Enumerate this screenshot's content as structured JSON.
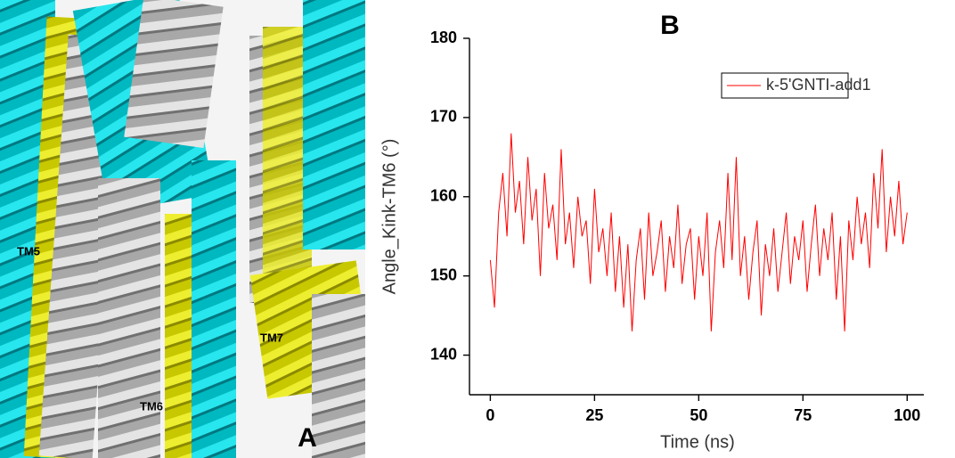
{
  "chart_data": {
    "type": "line",
    "title": "B",
    "x_label": "Time (ns)",
    "y_label": "Angle_Kink-TM6 (°)",
    "x": [
      0,
      1,
      2,
      3,
      4,
      5,
      6,
      7,
      8,
      9,
      10,
      11,
      12,
      13,
      14,
      15,
      16,
      17,
      18,
      19,
      20,
      21,
      22,
      23,
      24,
      25,
      26,
      27,
      28,
      29,
      30,
      31,
      32,
      33,
      34,
      35,
      36,
      37,
      38,
      39,
      40,
      41,
      42,
      43,
      44,
      45,
      46,
      47,
      48,
      49,
      50,
      51,
      52,
      53,
      54,
      55,
      56,
      57,
      58,
      59,
      60,
      61,
      62,
      63,
      64,
      65,
      66,
      67,
      68,
      69,
      70,
      71,
      72,
      73,
      74,
      75,
      76,
      77,
      78,
      79,
      80,
      81,
      82,
      83,
      84,
      85,
      86,
      87,
      88,
      89,
      90,
      91,
      92,
      93,
      94,
      95,
      96,
      97,
      98,
      99,
      100
    ],
    "series": [
      {
        "name": "k-5'GNTI-add1",
        "color": "#ff0000",
        "values": [
          152,
          146,
          158,
          163,
          155,
          168,
          158,
          162,
          154,
          165,
          157,
          161,
          150,
          163,
          156,
          159,
          152,
          166,
          154,
          158,
          151,
          160,
          155,
          157,
          149,
          161,
          153,
          156,
          150,
          158,
          148,
          155,
          146,
          154,
          143,
          152,
          156,
          147,
          158,
          150,
          153,
          157,
          148,
          155,
          151,
          159,
          149,
          154,
          156,
          147,
          155,
          150,
          158,
          143,
          153,
          157,
          151,
          163,
          152,
          165,
          150,
          155,
          147,
          153,
          157,
          145,
          154,
          150,
          156,
          148,
          153,
          158,
          149,
          155,
          152,
          157,
          148,
          154,
          159,
          150,
          156,
          152,
          158,
          147,
          155,
          143,
          157,
          152,
          160,
          154,
          158,
          151,
          163,
          156,
          166,
          153,
          160,
          155,
          162,
          154,
          158
        ]
      }
    ],
    "xlim": [
      -5,
      104
    ],
    "ylim": [
      135,
      180
    ],
    "xticks": [
      0,
      25,
      50,
      75,
      100
    ],
    "yticks": [
      140,
      150,
      160,
      170,
      180
    ],
    "legend": "upper right",
    "grid": false
  },
  "panel_a": {
    "labels": [
      "TM5",
      "TM6",
      "TM7"
    ],
    "letter": "A"
  }
}
